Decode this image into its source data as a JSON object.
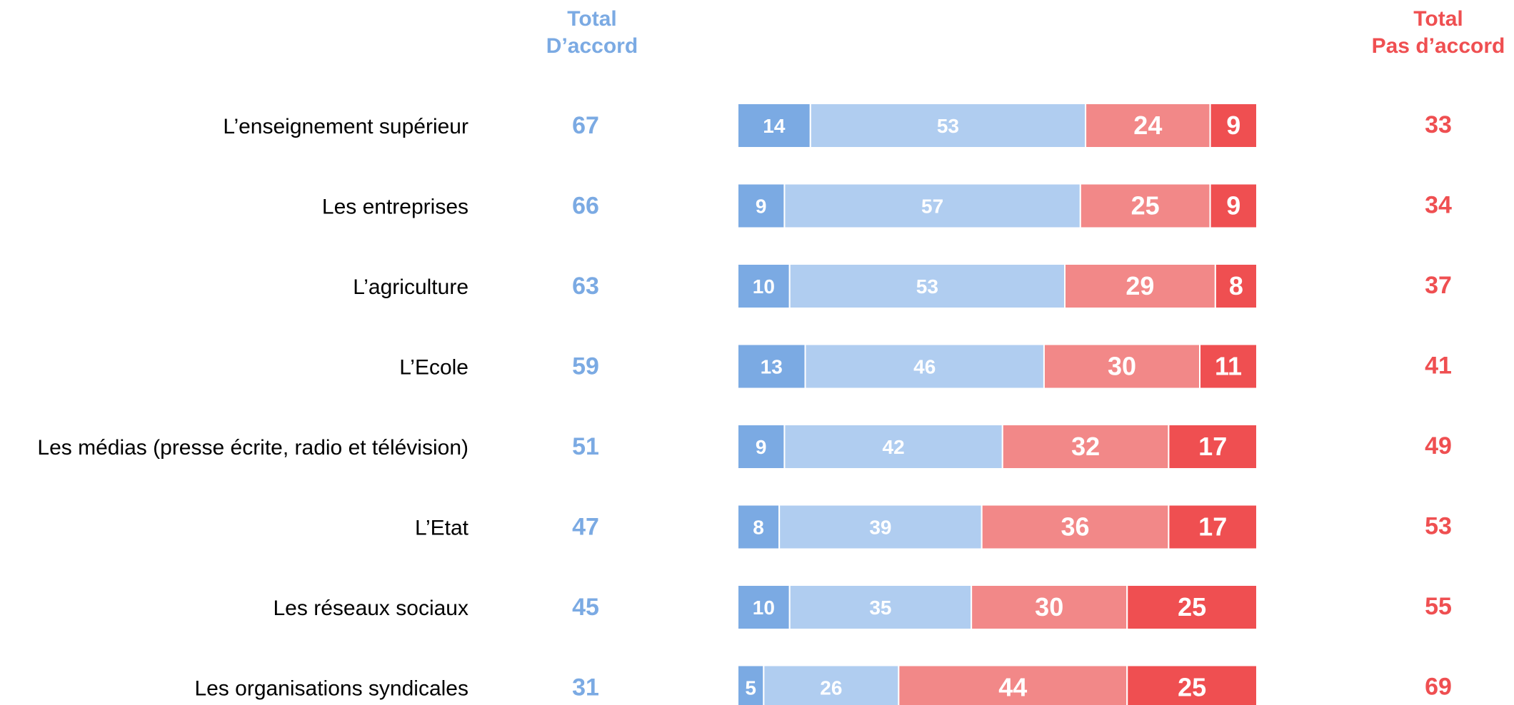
{
  "header": {
    "agree": [
      "Total",
      "D’accord"
    ],
    "disagree": [
      "Total",
      "Pas d’accord"
    ]
  },
  "colors": {
    "strong_agree": "#7BAAE3",
    "agree": "#B0CDF0",
    "disagree": "#F28888",
    "strong_disagree": "#EF4F51",
    "agree_text": "#7BAAE3",
    "disagree_text": "#EF4F51",
    "label_text": "#000000"
  },
  "chart_data": {
    "type": "bar",
    "stacked": true,
    "orientation": "horizontal",
    "categories": [
      "L’enseignement supérieur",
      "Les entreprises",
      "L’agriculture",
      "L’Ecole",
      "Les médias (presse écrite, radio et télévision)",
      "L’Etat",
      "Les réseaux sociaux",
      "Les organisations syndicales"
    ],
    "series": [
      {
        "key": "strong_agree",
        "values": [
          14,
          9,
          10,
          13,
          9,
          8,
          10,
          5
        ]
      },
      {
        "key": "agree",
        "values": [
          53,
          57,
          53,
          46,
          42,
          39,
          35,
          26
        ]
      },
      {
        "key": "disagree",
        "values": [
          24,
          25,
          29,
          30,
          32,
          36,
          30,
          44
        ]
      },
      {
        "key": "strong_disagree",
        "values": [
          9,
          9,
          8,
          11,
          17,
          17,
          25,
          25
        ]
      }
    ],
    "total_agree": [
      67,
      66,
      63,
      59,
      51,
      47,
      45,
      31
    ],
    "total_disagree": [
      33,
      34,
      37,
      41,
      49,
      53,
      55,
      69
    ],
    "xlim": [
      0,
      100
    ]
  }
}
